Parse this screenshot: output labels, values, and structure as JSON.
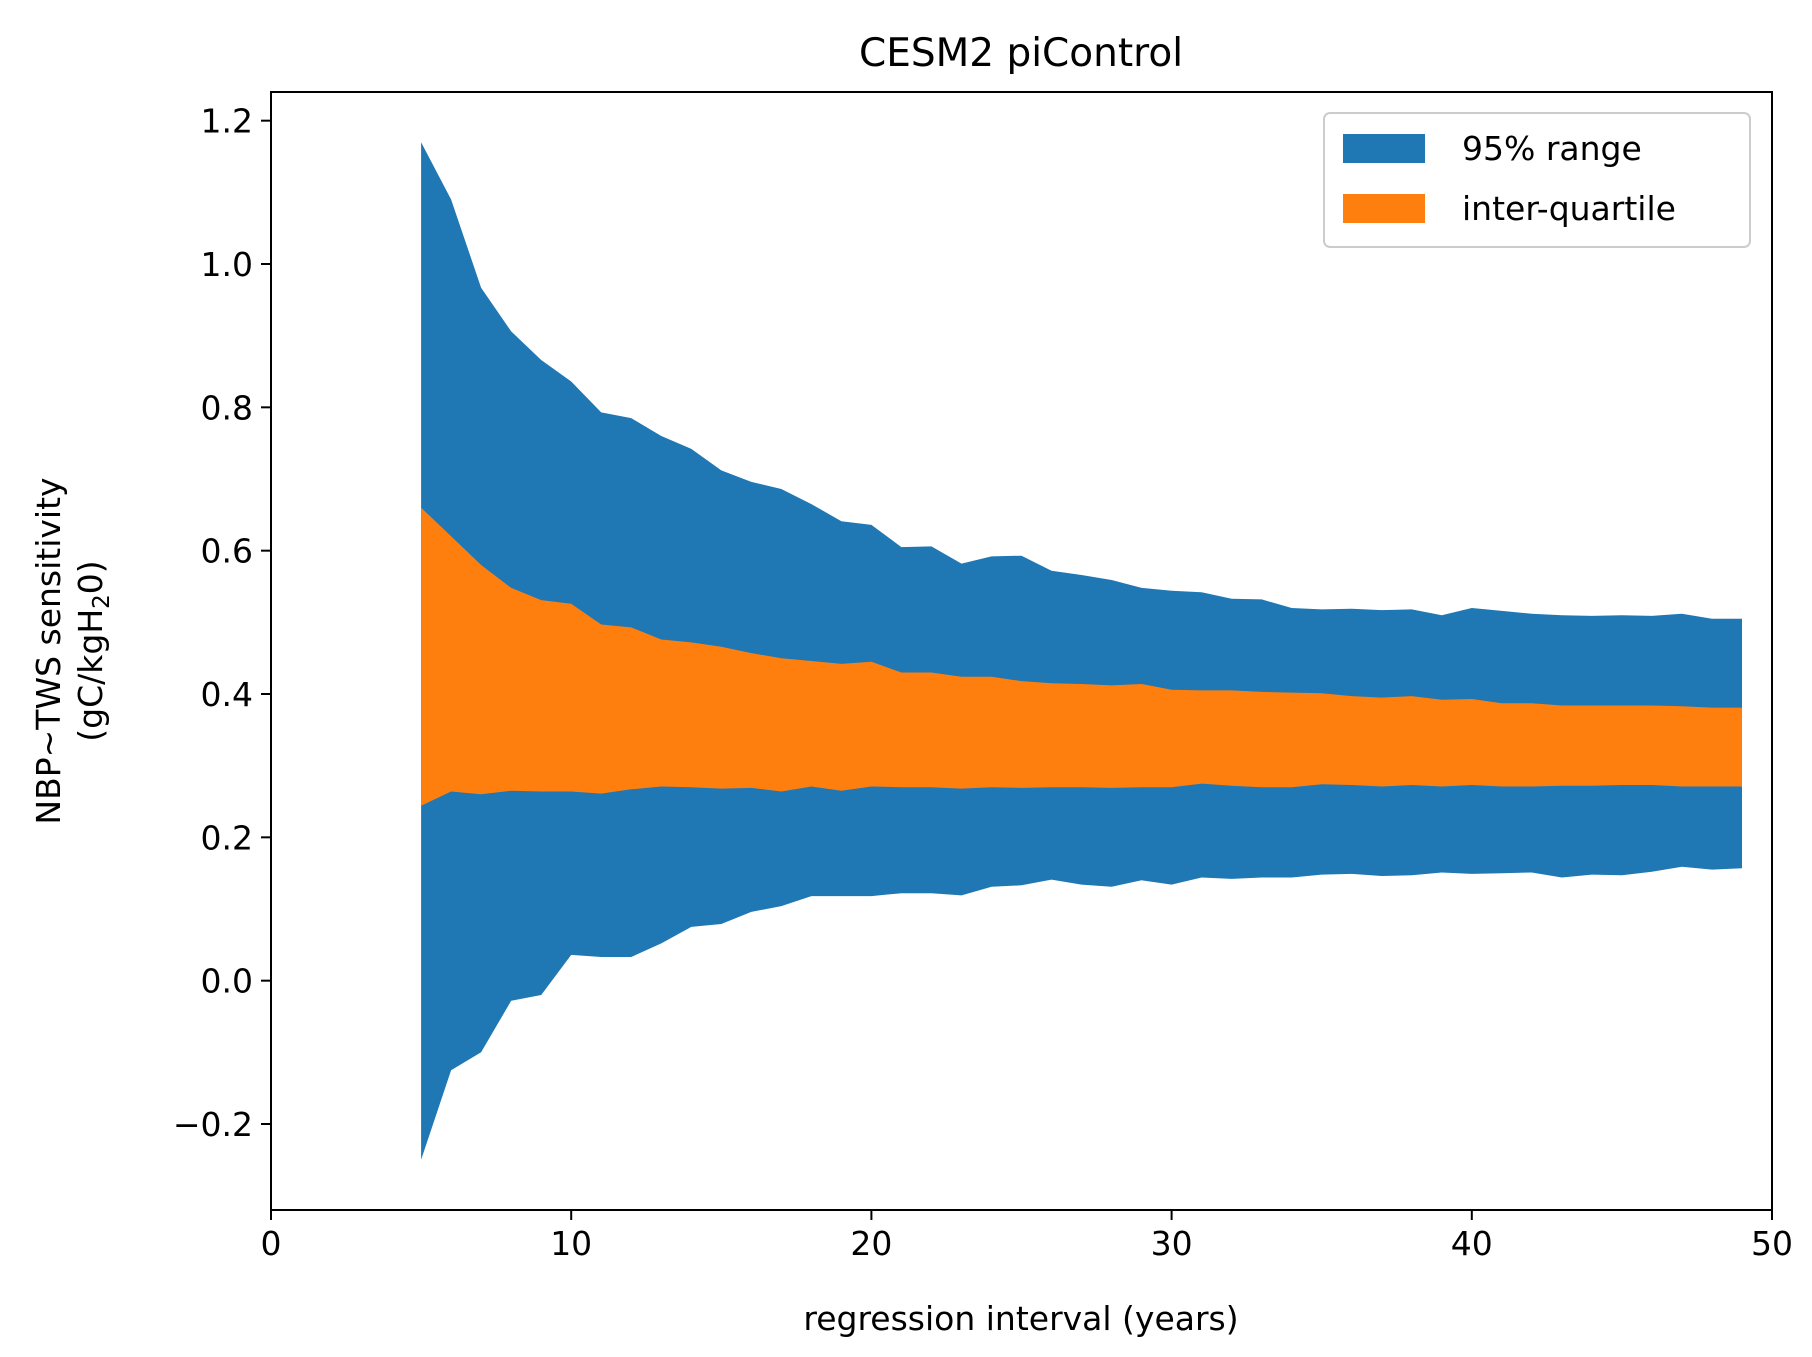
{
  "chart_data": {
    "type": "area",
    "title": "CESM2 piControl",
    "xlabel": "regression interval (years)",
    "ylabel_line1": "NBP~TWS sensitivity",
    "ylabel_line2_prefix": "(gC/kgH",
    "ylabel_line2_sub": "2",
    "ylabel_line2_suffix": "0)",
    "xlim": [
      0,
      50
    ],
    "ylim": [
      -0.32,
      1.24
    ],
    "xticks": [
      0,
      10,
      20,
      30,
      40,
      50
    ],
    "xtick_labels": [
      "0",
      "10",
      "20",
      "30",
      "40",
      "50"
    ],
    "yticks": [
      -0.2,
      0.0,
      0.2,
      0.4,
      0.6,
      0.8,
      1.0,
      1.2
    ],
    "ytick_labels": [
      "−0.2",
      "0.0",
      "0.2",
      "0.4",
      "0.6",
      "0.8",
      "1.0",
      "1.2"
    ],
    "grid": false,
    "legend_position": "top-right",
    "x": [
      5,
      6,
      7,
      8,
      9,
      10,
      11,
      12,
      13,
      14,
      15,
      16,
      17,
      18,
      19,
      20,
      21,
      22,
      23,
      24,
      25,
      26,
      27,
      28,
      29,
      30,
      31,
      32,
      33,
      34,
      35,
      36,
      37,
      38,
      39,
      40,
      41,
      42,
      43,
      44,
      45,
      46,
      47,
      48,
      49
    ],
    "series": [
      {
        "name": "95% range",
        "color": "#1f77b4",
        "lower": [
          -0.25,
          -0.125,
          -0.1,
          -0.028,
          -0.02,
          0.036,
          0.033,
          0.033,
          0.052,
          0.075,
          0.079,
          0.096,
          0.104,
          0.118,
          0.118,
          0.118,
          0.122,
          0.122,
          0.119,
          0.131,
          0.133,
          0.141,
          0.134,
          0.131,
          0.14,
          0.134,
          0.144,
          0.142,
          0.144,
          0.144,
          0.148,
          0.149,
          0.146,
          0.147,
          0.151,
          0.149,
          0.15,
          0.151,
          0.144,
          0.148,
          0.147,
          0.152,
          0.159,
          0.155,
          0.157
        ],
        "upper": [
          1.17,
          1.09,
          0.967,
          0.906,
          0.866,
          0.836,
          0.793,
          0.785,
          0.76,
          0.742,
          0.712,
          0.696,
          0.686,
          0.665,
          0.641,
          0.636,
          0.605,
          0.606,
          0.582,
          0.592,
          0.593,
          0.572,
          0.566,
          0.559,
          0.548,
          0.544,
          0.542,
          0.533,
          0.532,
          0.52,
          0.518,
          0.519,
          0.517,
          0.518,
          0.51,
          0.52,
          0.516,
          0.512,
          0.51,
          0.509,
          0.51,
          0.509,
          0.512,
          0.505,
          0.505
        ]
      },
      {
        "name": "inter-quartile",
        "color": "#ff7f0e",
        "lower": [
          0.244,
          0.264,
          0.26,
          0.265,
          0.264,
          0.264,
          0.261,
          0.267,
          0.271,
          0.27,
          0.268,
          0.269,
          0.264,
          0.271,
          0.265,
          0.271,
          0.27,
          0.27,
          0.268,
          0.27,
          0.269,
          0.27,
          0.27,
          0.269,
          0.27,
          0.27,
          0.275,
          0.272,
          0.27,
          0.27,
          0.274,
          0.273,
          0.271,
          0.273,
          0.271,
          0.273,
          0.271,
          0.271,
          0.272,
          0.272,
          0.273,
          0.273,
          0.271,
          0.271,
          0.271
        ],
        "upper": [
          0.66,
          0.62,
          0.58,
          0.548,
          0.531,
          0.526,
          0.497,
          0.493,
          0.476,
          0.472,
          0.466,
          0.457,
          0.45,
          0.446,
          0.442,
          0.445,
          0.43,
          0.43,
          0.424,
          0.424,
          0.418,
          0.415,
          0.414,
          0.412,
          0.414,
          0.406,
          0.405,
          0.405,
          0.403,
          0.402,
          0.401,
          0.397,
          0.395,
          0.397,
          0.392,
          0.393,
          0.387,
          0.387,
          0.384,
          0.384,
          0.384,
          0.384,
          0.383,
          0.381,
          0.381
        ]
      }
    ]
  }
}
